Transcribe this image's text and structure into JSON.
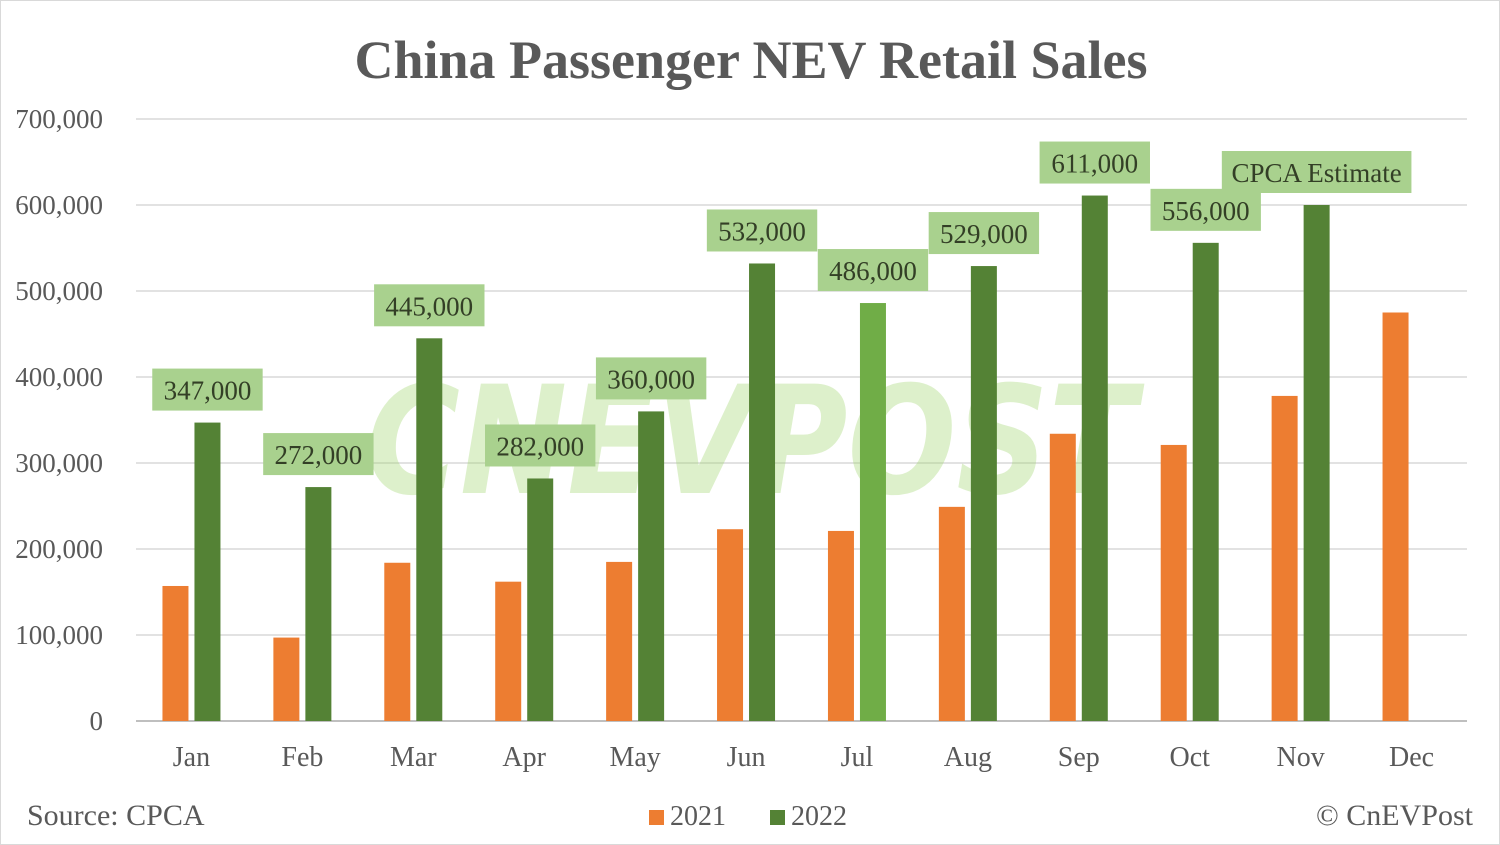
{
  "chart_data": {
    "type": "bar",
    "title": "China Passenger NEV Retail Sales",
    "categories": [
      "Jan",
      "Feb",
      "Mar",
      "Apr",
      "May",
      "Jun",
      "Jul",
      "Aug",
      "Sep",
      "Oct",
      "Nov",
      "Dec"
    ],
    "series": [
      {
        "name": "2021",
        "color": "#ed7d31",
        "values": [
          157000,
          97000,
          184000,
          162000,
          185000,
          223000,
          221000,
          249000,
          334000,
          321000,
          378000,
          475000
        ]
      },
      {
        "name": "2022",
        "color": "#548235",
        "values": [
          347000,
          272000,
          445000,
          282000,
          360000,
          532000,
          486000,
          529000,
          611000,
          556000,
          600000,
          null
        ],
        "data_labels": [
          "347,000",
          "272,000",
          "445,000",
          "282,000",
          "360,000",
          "532,000",
          "486,000",
          "529,000",
          "611,000",
          "556,000",
          "CPCA Estimate",
          null
        ],
        "highlight_color": {
          "Jul": "#70ad47"
        }
      }
    ],
    "ylim": [
      0,
      700000
    ],
    "yticks": [
      "0",
      "100,000",
      "200,000",
      "300,000",
      "400,000",
      "500,000",
      "600,000",
      "700,000"
    ],
    "grid": true,
    "legend": "bottom",
    "label_box_color": "#a9d18e"
  },
  "footer": {
    "source": "Source: CPCA",
    "credit": "© CnEVPost"
  },
  "watermark": "CNEVPOST"
}
